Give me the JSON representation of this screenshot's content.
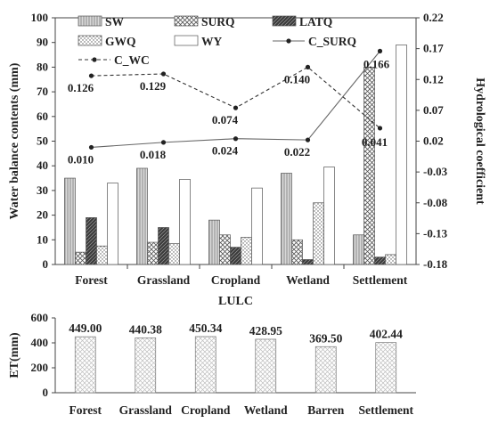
{
  "chart_data": [
    {
      "type": "bar",
      "xlabel": "LULC",
      "ylabel": "Water balance contents (mm)",
      "y2label": "Hydrological coefficient",
      "ylim": [
        0,
        100
      ],
      "y2lim": [
        -0.18,
        0.22
      ],
      "yticks": [
        "0",
        "10",
        "20",
        "30",
        "40",
        "50",
        "60",
        "70",
        "80",
        "90",
        "100"
      ],
      "y2ticks": [
        "-0.18",
        "-0.13",
        "-0.08",
        "-0.03",
        "0.02",
        "0.07",
        "0.12",
        "0.17",
        "0.22"
      ],
      "categories": [
        "Forest",
        "Grassland",
        "Cropland",
        "Wetland",
        "Settlement"
      ],
      "legend_position": "top-inside",
      "series": [
        {
          "name": "SW",
          "kind": "bar",
          "pattern": "vertical-stripes",
          "values": [
            35,
            39,
            18,
            37,
            12
          ]
        },
        {
          "name": "SURQ",
          "kind": "bar",
          "pattern": "crosshatch",
          "values": [
            5,
            9,
            12,
            10,
            80
          ]
        },
        {
          "name": "LATQ",
          "kind": "bar",
          "pattern": "dark-diagonal",
          "values": [
            19,
            15,
            7,
            2,
            3
          ]
        },
        {
          "name": "GWQ",
          "kind": "bar",
          "pattern": "dots",
          "values": [
            7.5,
            8.5,
            11,
            25,
            4
          ]
        },
        {
          "name": "WY",
          "kind": "bar",
          "pattern": "white",
          "values": [
            33,
            34.5,
            31,
            39.5,
            89
          ]
        },
        {
          "name": "C_SURQ",
          "kind": "line",
          "axis": "right",
          "values": [
            0.01,
            0.018,
            0.024,
            0.022,
            0.166
          ],
          "labels": [
            "0.010",
            "0.018",
            "0.024",
            "0.022",
            "0.166"
          ]
        },
        {
          "name": "C_WC",
          "kind": "line",
          "axis": "right",
          "dashed": true,
          "values": [
            0.126,
            0.129,
            0.074,
            0.14,
            0.041
          ],
          "labels": [
            "0.126",
            "0.129",
            "0.074",
            "0.140",
            "0.041"
          ]
        }
      ]
    },
    {
      "type": "bar",
      "ylabel": "ET(mm)",
      "ylim": [
        0,
        600
      ],
      "yticks": [
        "0",
        "200",
        "400",
        "600"
      ],
      "categories": [
        "Forest",
        "Grassland",
        "Cropland",
        "Wetland",
        "Barren",
        "Settlement"
      ],
      "values": [
        449.0,
        440.38,
        450.34,
        428.95,
        369.5,
        402.44
      ],
      "labels": [
        "449.00",
        "440.38",
        "450.34",
        "428.95",
        "369.50",
        "402.44"
      ]
    }
  ]
}
